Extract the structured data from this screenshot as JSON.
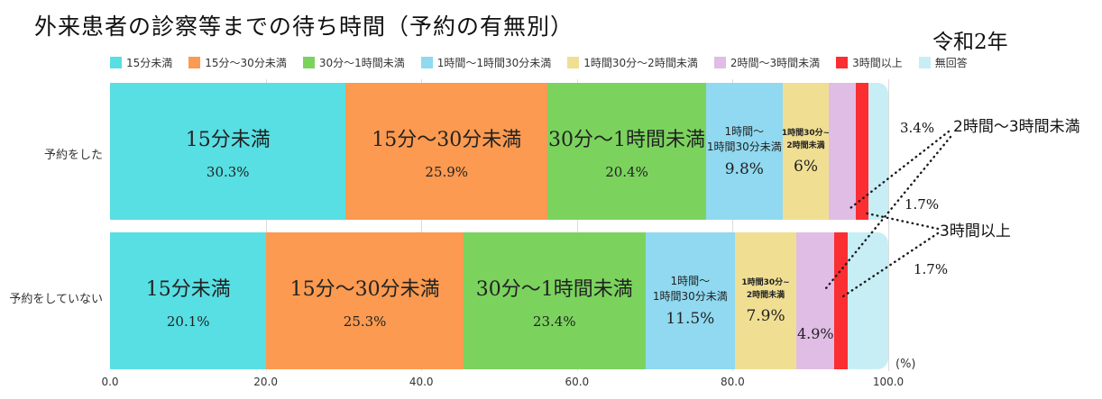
{
  "title": "外来患者の診察等までの待ち時間（予約の有無別）",
  "era_label": "令和2年",
  "unit_label": "(%)",
  "legend": [
    {
      "label": "15分未満",
      "color": "#58dfe3"
    },
    {
      "label": "15分～30分未満",
      "color": "#fb9a50"
    },
    {
      "label": "30分～1時間未満",
      "color": "#7bd35e"
    },
    {
      "label": "1時間～1時間30分未満",
      "color": "#90d9f0"
    },
    {
      "label": "1時間30分～2時間未満",
      "color": "#f0df92"
    },
    {
      "label": "2時間～3時間未満",
      "color": "#e0bde5"
    },
    {
      "label": "3時間以上",
      "color": "#fb2e32"
    },
    {
      "label": "無回答",
      "color": "#c7eef5"
    }
  ],
  "chart_data": {
    "type": "bar",
    "subtype": "horizontal-stacked-100pct",
    "title": "外来患者の診察等までの待ち時間（予約の有無別）",
    "categories": [
      "予約をした",
      "予約をしていない"
    ],
    "xlim": [
      0,
      100
    ],
    "x_ticks": [
      "0.0",
      "20.0",
      "40.0",
      "60.0",
      "80.0",
      "100.0"
    ],
    "grid": true,
    "legend_position": "top",
    "series": [
      {
        "name": "15分未満",
        "color": "#58dfe3",
        "values": [
          30.3,
          20.1
        ],
        "value_labels": [
          "30.3%",
          "20.1%"
        ],
        "label_mode": [
          "name-value",
          "name-value"
        ]
      },
      {
        "name": "15分～30分未満",
        "color": "#fb9a50",
        "values": [
          25.9,
          25.3
        ],
        "value_labels": [
          "25.9%",
          "25.3%"
        ],
        "label_mode": [
          "name-value",
          "name-value"
        ]
      },
      {
        "name": "30分～1時間未満",
        "color": "#7bd35e",
        "values": [
          20.4,
          23.4
        ],
        "value_labels": [
          "20.4%",
          "23.4%"
        ],
        "label_mode": [
          "name-value",
          "name-value"
        ]
      },
      {
        "name": "1時間～1時間30分未満",
        "color": "#90d9f0",
        "values": [
          9.8,
          11.5
        ],
        "name_lines": [
          "1時間～",
          "1時間30分未満"
        ],
        "value_labels": [
          "9.8%",
          "11.5%"
        ],
        "label_mode": [
          "smallname-value",
          "smallname-value"
        ]
      },
      {
        "name": "1時間30分～2時間未満",
        "color": "#f0df92",
        "values": [
          6,
          7.9
        ],
        "name_lines": [
          "1時間30分~",
          "2時間未満"
        ],
        "value_labels": [
          "6%",
          "7.9%"
        ],
        "label_mode": [
          "tinyname-value",
          "tinyname-value"
        ]
      },
      {
        "name": "2時間～3時間未満",
        "color": "#e0bde5",
        "values": [
          3.4,
          4.9
        ],
        "value_labels": [
          null,
          "4.9%"
        ],
        "label_mode": [
          "none",
          "value-only"
        ]
      },
      {
        "name": "3時間以上",
        "color": "#fb2e32",
        "values": [
          1.7,
          1.7
        ],
        "value_labels": [
          null,
          null
        ],
        "label_mode": [
          "none",
          "none"
        ]
      },
      {
        "name": "無回答",
        "color": "#c7eef5",
        "values": [
          null,
          null
        ],
        "value_labels": [
          null,
          null
        ],
        "label_mode": [
          "none",
          "none"
        ]
      }
    ],
    "annotations": [
      {
        "text": "3.4%"
      },
      {
        "text": "2時間～3時間未満"
      },
      {
        "text": "1.7%"
      },
      {
        "text": "3時間以上"
      },
      {
        "text": "1.7%"
      }
    ]
  }
}
